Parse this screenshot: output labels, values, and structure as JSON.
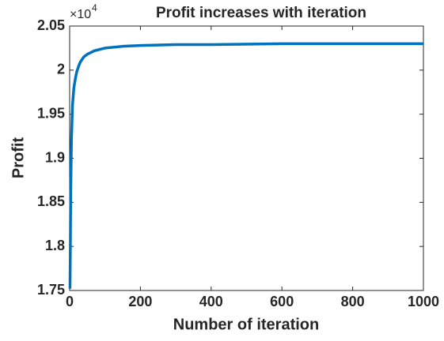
{
  "chart_data": {
    "type": "line",
    "title": "Profit increases with iteration",
    "xlabel": "Number of iteration",
    "ylabel": "Profit",
    "y_multiplier": {
      "base": "×10",
      "exponent": "4"
    },
    "x": [
      1,
      2,
      3,
      5,
      8,
      12,
      16,
      20,
      25,
      30,
      40,
      50,
      70,
      100,
      150,
      200,
      300,
      400,
      600,
      800,
      1000
    ],
    "series": [
      {
        "name": "Profit",
        "color": "#0072bd",
        "values": [
          1.752,
          1.8,
          1.86,
          1.92,
          1.96,
          1.98,
          1.99,
          1.998,
          2.004,
          2.009,
          2.015,
          2.018,
          2.022,
          2.025,
          2.027,
          2.028,
          2.029,
          2.029,
          2.03,
          2.03,
          2.03
        ]
      }
    ],
    "xlim": [
      0,
      1000
    ],
    "xticks": [
      0,
      200,
      400,
      600,
      800,
      1000
    ],
    "ylim": [
      1.75,
      2.05
    ],
    "yticks": [
      1.75,
      1.8,
      1.85,
      1.9,
      1.95,
      2,
      2.05
    ],
    "grid": false
  }
}
